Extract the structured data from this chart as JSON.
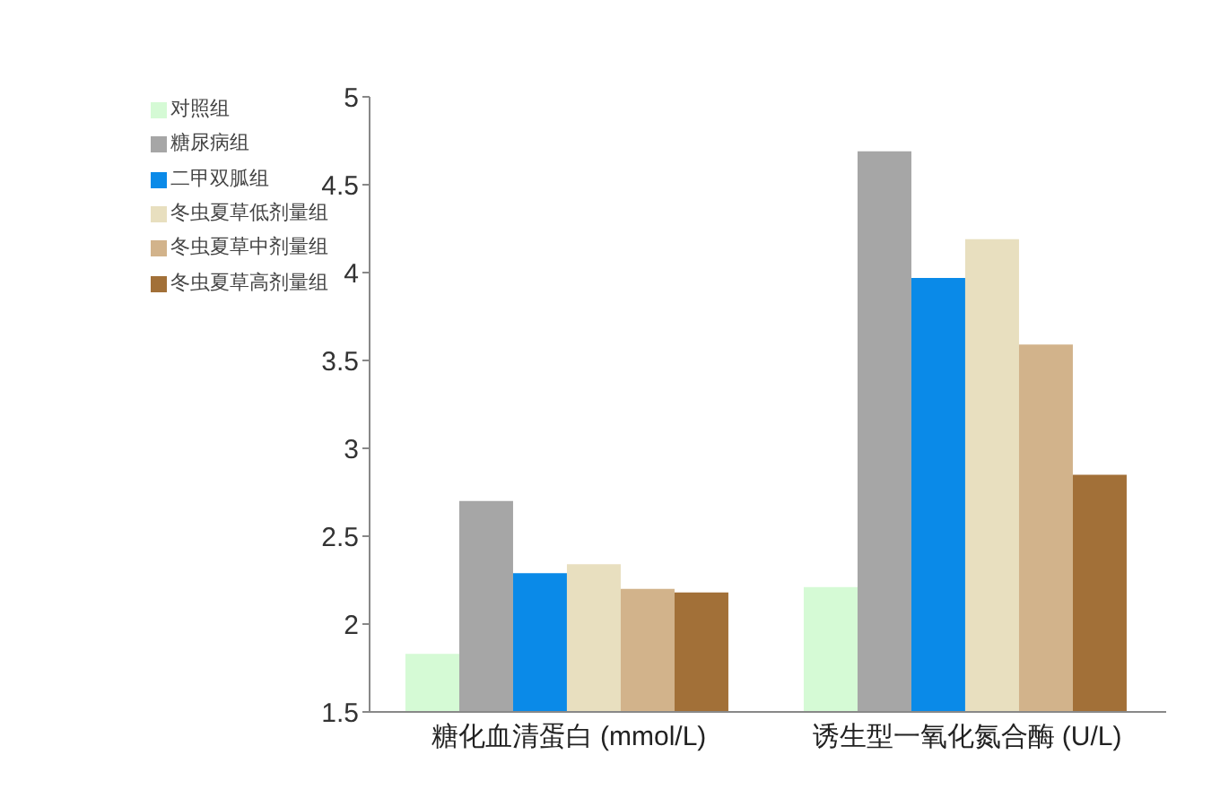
{
  "chart_data": {
    "type": "bar",
    "categories": [
      "糖化血清蛋白 (mmol/L)",
      "诱生型一氧化氮合酶 (U/L)"
    ],
    "series": [
      {
        "name": "对照组",
        "color": "#d5fad5",
        "values": [
          1.83,
          2.21
        ]
      },
      {
        "name": "糖尿病组",
        "color": "#a6a6a6",
        "values": [
          2.7,
          4.69
        ]
      },
      {
        "name": "二甲双胍组",
        "color": "#0a8ae8",
        "values": [
          2.29,
          3.97
        ]
      },
      {
        "name": "冬虫夏草低剂量组",
        "color": "#e8dfbf",
        "values": [
          2.34,
          4.19
        ]
      },
      {
        "name": "冬虫夏草中剂量组",
        "color": "#d2b38b",
        "values": [
          2.2,
          3.59
        ]
      },
      {
        "name": "冬虫夏草高剂量组",
        "color": "#a27038",
        "values": [
          2.18,
          2.85
        ]
      }
    ],
    "ylim": [
      1.5,
      5
    ],
    "yticks": [
      1.5,
      2,
      2.5,
      3,
      3.5,
      4,
      4.5,
      5
    ],
    "grid": false,
    "legend": "top left"
  }
}
